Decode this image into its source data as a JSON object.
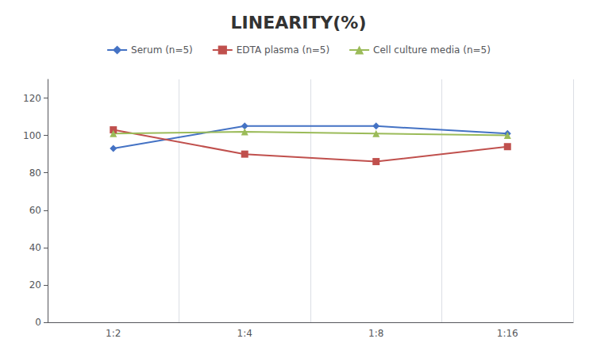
{
  "chart_data": {
    "type": "line",
    "title": "LINEARITY(%)",
    "categories": [
      "1:2",
      "1:4",
      "1:8",
      "1:16"
    ],
    "series": [
      {
        "name": "Serum (n=5)",
        "color": "#4472C4",
        "marker": "diamond",
        "values": [
          93,
          105,
          105,
          101
        ]
      },
      {
        "name": "EDTA plasma (n=5)",
        "color": "#C0504D",
        "marker": "square",
        "values": [
          103,
          90,
          86,
          94
        ]
      },
      {
        "name": "Cell culture media (n=5)",
        "color": "#9BBB59",
        "marker": "triangle",
        "values": [
          101,
          102,
          101,
          100
        ]
      }
    ],
    "ylim": [
      0,
      130
    ],
    "yticks": [
      0,
      20,
      40,
      60,
      80,
      100,
      120
    ],
    "grid": true,
    "legend": "top"
  }
}
